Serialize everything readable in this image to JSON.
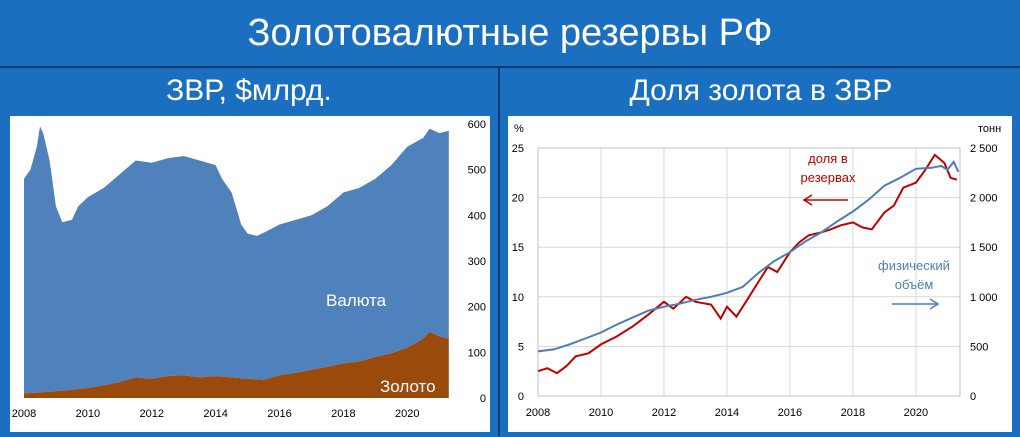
{
  "header": {
    "title": "Золотовалютные резервы РФ"
  },
  "left_panel": {
    "title": "ЗВР, $млрд."
  },
  "right_panel": {
    "title": "Доля золота в ЗВР"
  },
  "chart_data": [
    {
      "type": "area",
      "title": "ЗВР, $млрд.",
      "ylim": [
        0,
        600
      ],
      "yticks": [
        0,
        100,
        200,
        300,
        400,
        500,
        600
      ],
      "xlim": [
        2008.0,
        2021.4
      ],
      "xticks": [
        "2008",
        "2010",
        "2012",
        "2014",
        "2016",
        "2018",
        "2020"
      ],
      "grid": false,
      "stacked": true,
      "series": [
        {
          "name": "Золото",
          "color": "#9a4a0a",
          "points": [
            [
              2008.0,
              10
            ],
            [
              2008.5,
              12
            ],
            [
              2009.0,
              15
            ],
            [
              2009.5,
              18
            ],
            [
              2010.0,
              22
            ],
            [
              2010.5,
              28
            ],
            [
              2011.0,
              35
            ],
            [
              2011.5,
              45
            ],
            [
              2012.0,
              42
            ],
            [
              2012.5,
              48
            ],
            [
              2013.0,
              50
            ],
            [
              2013.5,
              45
            ],
            [
              2014.0,
              48
            ],
            [
              2014.5,
              45
            ],
            [
              2015.0,
              42
            ],
            [
              2015.5,
              40
            ],
            [
              2016.0,
              50
            ],
            [
              2016.5,
              55
            ],
            [
              2017.0,
              62
            ],
            [
              2017.5,
              68
            ],
            [
              2018.0,
              76
            ],
            [
              2018.5,
              80
            ],
            [
              2019.0,
              90
            ],
            [
              2019.5,
              98
            ],
            [
              2020.0,
              110
            ],
            [
              2020.5,
              130
            ],
            [
              2020.7,
              145
            ],
            [
              2021.0,
              135
            ],
            [
              2021.3,
              130
            ]
          ]
        },
        {
          "name": "Валюта",
          "color": "#4f81bd",
          "points": [
            [
              2008.0,
              480
            ],
            [
              2008.2,
              500
            ],
            [
              2008.4,
              550
            ],
            [
              2008.5,
              595
            ],
            [
              2008.6,
              580
            ],
            [
              2008.8,
              520
            ],
            [
              2009.0,
              420
            ],
            [
              2009.2,
              385
            ],
            [
              2009.5,
              390
            ],
            [
              2009.7,
              420
            ],
            [
              2010.0,
              440
            ],
            [
              2010.5,
              460
            ],
            [
              2011.0,
              490
            ],
            [
              2011.5,
              520
            ],
            [
              2012.0,
              515
            ],
            [
              2012.5,
              525
            ],
            [
              2013.0,
              530
            ],
            [
              2013.5,
              520
            ],
            [
              2014.0,
              510
            ],
            [
              2014.2,
              480
            ],
            [
              2014.5,
              450
            ],
            [
              2014.8,
              380
            ],
            [
              2015.0,
              360
            ],
            [
              2015.3,
              355
            ],
            [
              2015.6,
              365
            ],
            [
              2016.0,
              380
            ],
            [
              2016.5,
              390
            ],
            [
              2017.0,
              400
            ],
            [
              2017.5,
              420
            ],
            [
              2018.0,
              450
            ],
            [
              2018.5,
              460
            ],
            [
              2019.0,
              480
            ],
            [
              2019.5,
              510
            ],
            [
              2020.0,
              550
            ],
            [
              2020.5,
              570
            ],
            [
              2020.7,
              590
            ],
            [
              2021.0,
              580
            ],
            [
              2021.3,
              585
            ]
          ]
        }
      ],
      "annotations": [
        {
          "text": "Валюта"
        },
        {
          "text": "Золото"
        }
      ]
    },
    {
      "type": "line",
      "title": "Доля золота в ЗВР",
      "xlim": [
        2008.0,
        2021.4
      ],
      "xticks": [
        "2008",
        "2010",
        "2012",
        "2014",
        "2016",
        "2018",
        "2020"
      ],
      "y_left": {
        "label": "%",
        "range": [
          0,
          25
        ],
        "ticks": [
          "0",
          "5",
          "10",
          "15",
          "20",
          "25"
        ]
      },
      "y_right": {
        "label": "тонн",
        "range": [
          0,
          2500
        ],
        "ticks": [
          "0",
          "500",
          "1 000",
          "1 500",
          "2 000",
          "2 500"
        ]
      },
      "grid": true,
      "series": [
        {
          "name": "доля в резервах",
          "axis": "left",
          "color": "#c00000",
          "points": [
            [
              2008.0,
              2.5
            ],
            [
              2008.3,
              2.8
            ],
            [
              2008.6,
              2.3
            ],
            [
              2008.9,
              3.0
            ],
            [
              2009.2,
              4.0
            ],
            [
              2009.6,
              4.3
            ],
            [
              2010.0,
              5.2
            ],
            [
              2010.5,
              6.0
            ],
            [
              2011.0,
              7.0
            ],
            [
              2011.5,
              8.2
            ],
            [
              2012.0,
              9.5
            ],
            [
              2012.3,
              8.8
            ],
            [
              2012.7,
              10.0
            ],
            [
              2013.0,
              9.5
            ],
            [
              2013.5,
              9.2
            ],
            [
              2013.8,
              7.8
            ],
            [
              2014.0,
              9.0
            ],
            [
              2014.3,
              8.0
            ],
            [
              2014.6,
              9.5
            ],
            [
              2015.0,
              11.5
            ],
            [
              2015.3,
              13.0
            ],
            [
              2015.6,
              12.5
            ],
            [
              2016.0,
              14.5
            ],
            [
              2016.3,
              15.5
            ],
            [
              2016.6,
              16.2
            ],
            [
              2017.0,
              16.5
            ],
            [
              2017.3,
              16.8
            ],
            [
              2017.6,
              17.2
            ],
            [
              2018.0,
              17.5
            ],
            [
              2018.3,
              17.0
            ],
            [
              2018.6,
              16.8
            ],
            [
              2019.0,
              18.5
            ],
            [
              2019.3,
              19.2
            ],
            [
              2019.6,
              21.0
            ],
            [
              2020.0,
              21.5
            ],
            [
              2020.3,
              22.8
            ],
            [
              2020.6,
              24.3
            ],
            [
              2020.9,
              23.5
            ],
            [
              2021.1,
              22.0
            ],
            [
              2021.3,
              21.8
            ]
          ]
        },
        {
          "name": "физический объём",
          "axis": "right",
          "color": "#4a7eb5",
          "points": [
            [
              2008.0,
              450
            ],
            [
              2008.5,
              470
            ],
            [
              2009.0,
              520
            ],
            [
              2009.5,
              580
            ],
            [
              2010.0,
              640
            ],
            [
              2010.5,
              720
            ],
            [
              2011.0,
              790
            ],
            [
              2011.5,
              860
            ],
            [
              2012.0,
              900
            ],
            [
              2012.5,
              930
            ],
            [
              2013.0,
              970
            ],
            [
              2013.5,
              1000
            ],
            [
              2014.0,
              1040
            ],
            [
              2014.5,
              1100
            ],
            [
              2015.0,
              1240
            ],
            [
              2015.5,
              1360
            ],
            [
              2016.0,
              1450
            ],
            [
              2016.5,
              1560
            ],
            [
              2017.0,
              1650
            ],
            [
              2017.5,
              1760
            ],
            [
              2018.0,
              1860
            ],
            [
              2018.5,
              1980
            ],
            [
              2019.0,
              2120
            ],
            [
              2019.5,
              2200
            ],
            [
              2020.0,
              2290
            ],
            [
              2020.5,
              2300
            ],
            [
              2020.8,
              2320
            ],
            [
              2021.0,
              2280
            ],
            [
              2021.2,
              2360
            ],
            [
              2021.35,
              2260
            ]
          ]
        }
      ],
      "annotations": [
        {
          "text": "доля в\nрезервах"
        },
        {
          "text": "физический\nобъём"
        }
      ]
    }
  ]
}
